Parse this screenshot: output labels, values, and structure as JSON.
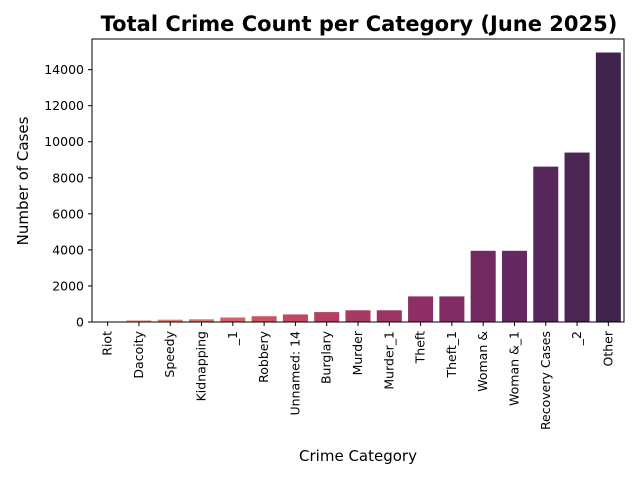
{
  "chart_data": {
    "type": "bar",
    "title": "Total Crime Count per Category (June 2025)",
    "xlabel": "Crime Category",
    "ylabel": "Number of Cases",
    "categories": [
      "Riot",
      "Dacoity",
      "Speedy",
      "Kidnapping",
      "_1",
      "Robbery",
      "Unnamed: 14",
      "Burglary",
      "Murder",
      "Murder_1",
      "Theft",
      "Theft_1",
      "Woman &",
      "Woman &_1",
      "Recovery Cases",
      "_2",
      "Other"
    ],
    "values": [
      10,
      90,
      130,
      150,
      250,
      320,
      420,
      550,
      650,
      650,
      1420,
      1420,
      3950,
      3950,
      8620,
      9400,
      14950
    ],
    "colors": [
      "#eca07a",
      "#e79075",
      "#e2806f",
      "#dd706a",
      "#d66066",
      "#cd5363",
      "#c24862",
      "#b53f62",
      "#a83963",
      "#9b3364",
      "#8d2e64",
      "#802b63",
      "#722962",
      "#652860",
      "#57275c",
      "#4b2655",
      "#3f244d"
    ],
    "ylim": [
      0,
      15700
    ],
    "yticks": [
      0,
      2000,
      4000,
      6000,
      8000,
      10000,
      12000,
      14000
    ],
    "grid": false,
    "legend": "none"
  }
}
